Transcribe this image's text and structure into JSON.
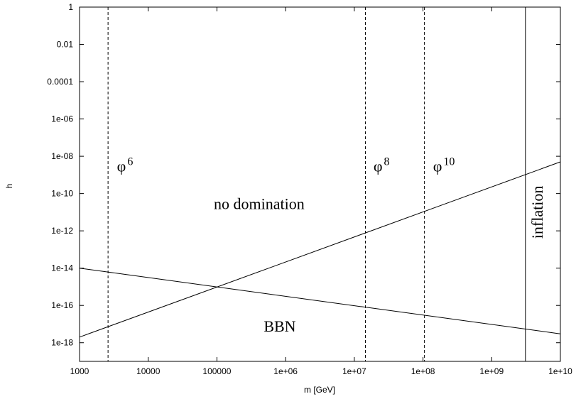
{
  "chart_data": {
    "type": "line",
    "title": "",
    "xlabel": "m [GeV]",
    "ylabel": "h",
    "xscale": "log",
    "yscale": "log",
    "xlim": [
      1000,
      10000000000
    ],
    "ylim": [
      1e-19,
      1
    ],
    "grid": false,
    "x_ticks": [
      {
        "value": 1000,
        "label": "1000"
      },
      {
        "value": 10000,
        "label": "10000"
      },
      {
        "value": 100000,
        "label": "100000"
      },
      {
        "value": 1000000,
        "label": "1e+06"
      },
      {
        "value": 10000000,
        "label": "1e+07"
      },
      {
        "value": 100000000,
        "label": "1e+08"
      },
      {
        "value": 1000000000,
        "label": "1e+09"
      },
      {
        "value": 10000000000,
        "label": "1e+10"
      }
    ],
    "y_ticks": [
      {
        "value": 1,
        "label": "1"
      },
      {
        "value": 0.01,
        "label": "0.01"
      },
      {
        "value": 0.0001,
        "label": "0.0001"
      },
      {
        "value": 1e-06,
        "label": "1e-06"
      },
      {
        "value": 1e-08,
        "label": "1e-08"
      },
      {
        "value": 1e-10,
        "label": "1e-10"
      },
      {
        "value": 1e-12,
        "label": "1e-12"
      },
      {
        "value": 1e-14,
        "label": "1e-14"
      },
      {
        "value": 1e-16,
        "label": "1e-16"
      },
      {
        "value": 1e-18,
        "label": "1e-18"
      }
    ],
    "lines": [
      {
        "id": "rising",
        "style": "solid",
        "points": [
          [
            1000,
            2e-18
          ],
          [
            10000000000,
            5e-09
          ]
        ]
      },
      {
        "id": "falling",
        "style": "solid",
        "points": [
          [
            1000,
            1e-14
          ],
          [
            10000000000,
            3e-18
          ]
        ]
      }
    ],
    "vertical_lines": [
      {
        "id": "phi6",
        "x": 2600,
        "style": "dashed"
      },
      {
        "id": "phi8",
        "x": 14500000,
        "style": "dashed"
      },
      {
        "id": "phi10",
        "x": 105000000,
        "style": "dashed"
      },
      {
        "id": "inflation",
        "x": 3100000000,
        "style": "solid"
      }
    ],
    "annotations": [
      {
        "id": "phi6",
        "base": "φ",
        "sup": "6",
        "x": 3500,
        "y": 1.5e-09
      },
      {
        "id": "phi8",
        "base": "φ",
        "sup": "8",
        "x": 19000000,
        "y": 1.5e-09
      },
      {
        "id": "phi10",
        "base": "φ",
        "sup": "10",
        "x": 140000000,
        "y": 1.5e-09
      },
      {
        "id": "no-domination",
        "text": "no domination",
        "x": 90000,
        "y": 1.5e-11
      },
      {
        "id": "bbn",
        "text": "BBN",
        "x": 480000,
        "y": 4e-18
      },
      {
        "id": "inflation",
        "text": "inflation",
        "x": 5500000000,
        "y": 1e-11,
        "rotate": -90
      }
    ]
  }
}
